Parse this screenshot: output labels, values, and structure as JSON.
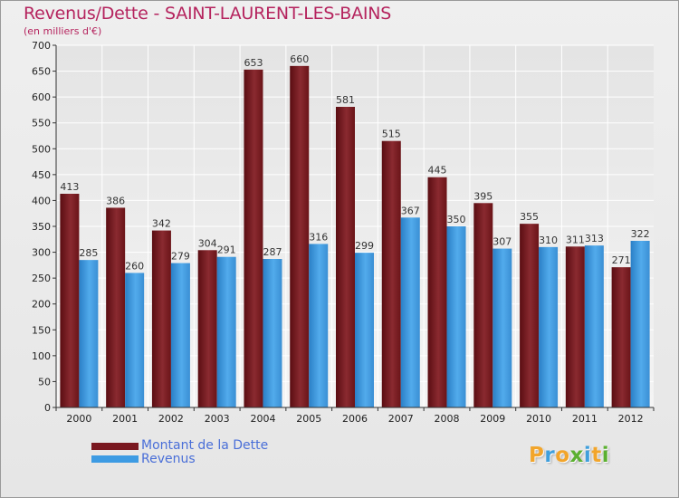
{
  "chart_data": {
    "type": "bar",
    "title": "Revenus/Dette - SAINT-LAURENT-LES-BAINS",
    "subtitle": "(en milliers d'€)",
    "categories": [
      "2000",
      "2001",
      "2002",
      "2003",
      "2004",
      "2005",
      "2006",
      "2007",
      "2008",
      "2009",
      "2010",
      "2011",
      "2012"
    ],
    "series": [
      {
        "name": "Montant de la Dette",
        "color": "#7a1820",
        "values": [
          413,
          386,
          342,
          304,
          653,
          660,
          581,
          515,
          445,
          395,
          355,
          311,
          271
        ]
      },
      {
        "name": "Revenus",
        "color": "#3d9be3",
        "values": [
          285,
          260,
          279,
          291,
          287,
          316,
          299,
          367,
          350,
          307,
          310,
          313,
          322
        ]
      }
    ],
    "ylim": [
      0,
      700
    ],
    "yticks": [
      0,
      50,
      100,
      150,
      200,
      250,
      300,
      350,
      400,
      450,
      500,
      550,
      600,
      650,
      700
    ],
    "grid": true,
    "legend": "bottom-left"
  },
  "legend": {
    "debt_label": "Montant de la Dette",
    "revenue_label": "Revenus"
  },
  "brand": {
    "letters": [
      "P",
      "r",
      "o",
      "x",
      "i",
      "t",
      "i"
    ],
    "colors": [
      "#f2a52b",
      "#3f9fdc",
      "#f2a52b",
      "#5bb030",
      "#3f9fdc",
      "#f2a52b",
      "#5bb030"
    ]
  }
}
